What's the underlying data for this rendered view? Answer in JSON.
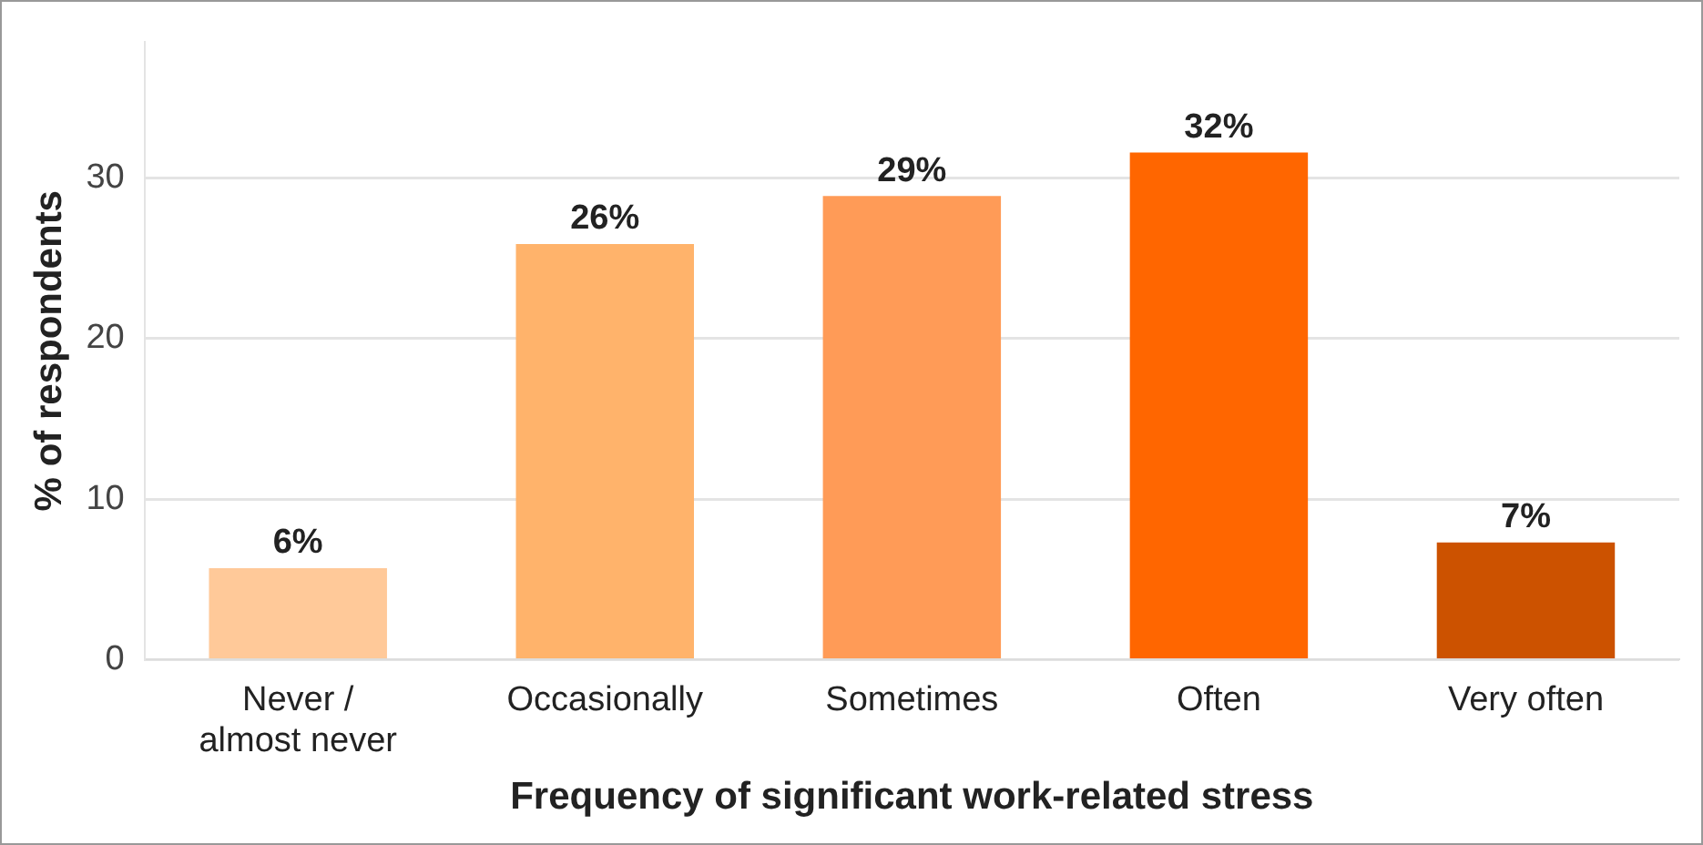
{
  "chart_data": {
    "type": "bar",
    "xlabel": "Frequency of significant work-related stress",
    "ylabel": "% of respondents",
    "categories": [
      "Never / almost never",
      "Occasionally",
      "Sometimes",
      "Often",
      "Very often"
    ],
    "values": [
      5.7,
      25.9,
      28.9,
      31.6,
      7.3
    ],
    "value_labels": [
      "6%",
      "26%",
      "29%",
      "32%",
      "7%"
    ],
    "colors": [
      "#ffc999",
      "#ffb36b",
      "#ff9b57",
      "#ff6600",
      "#cc5200"
    ],
    "ylim": [
      0,
      38.5
    ],
    "yticks": [
      0,
      10,
      20,
      30
    ],
    "grid": "y",
    "legend": false
  }
}
